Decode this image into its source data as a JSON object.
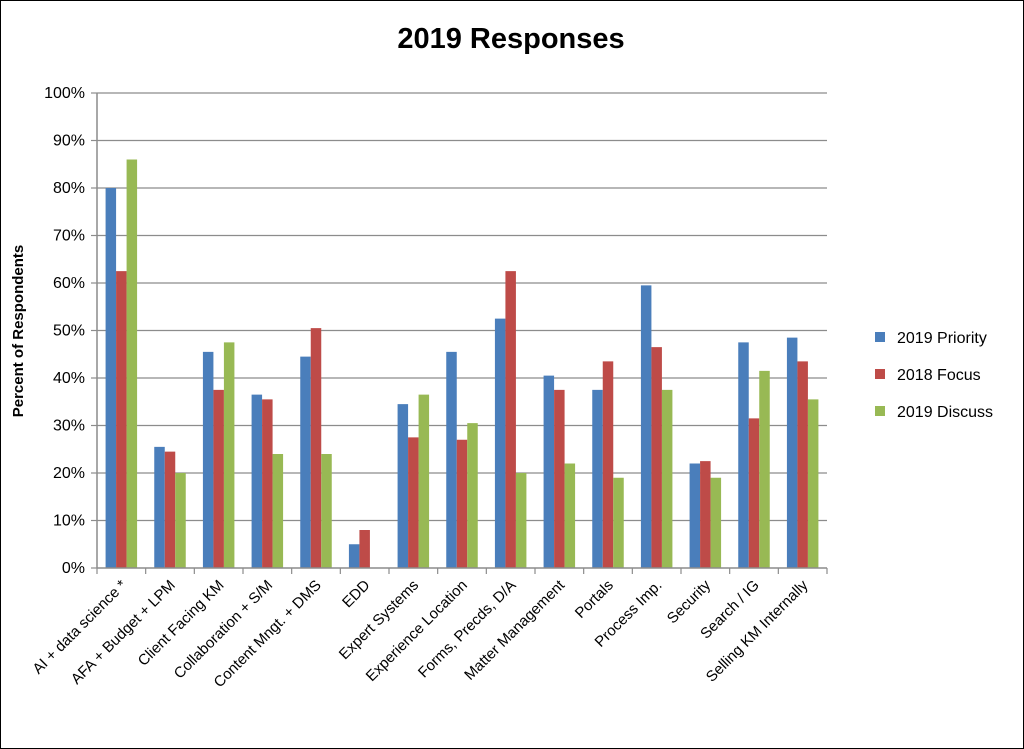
{
  "chart_data": {
    "type": "bar",
    "title": "2019 Responses",
    "xlabel": "",
    "ylabel": "Percent of Respondents",
    "ylim": [
      0,
      100
    ],
    "yticks": [
      "0%",
      "10%",
      "20%",
      "30%",
      "40%",
      "50%",
      "60%",
      "70%",
      "80%",
      "90%",
      "100%"
    ],
    "grid": true,
    "legend_position": "right",
    "categories": [
      "AI + data science *",
      "AFA + Budget + LPM",
      "Client Facing KM",
      "Collaboration + S/M",
      "Content Mngt. + DMS",
      "EDD",
      "Expert Systems",
      "Experience Location",
      "Forms, Precds, D/A",
      "Matter Management",
      "Portals",
      "Process Imp.",
      "Security",
      "Search / IG",
      "Selling KM Internally"
    ],
    "series": [
      {
        "name": "2019 Priority",
        "color": "#4a7ebb",
        "values": [
          80,
          25.5,
          45.5,
          36.5,
          44.5,
          5,
          34.5,
          45.5,
          52.5,
          40.5,
          37.5,
          59.5,
          22,
          47.5,
          48.5
        ]
      },
      {
        "name": "2018 Focus",
        "color": "#be4b48",
        "values": [
          62.5,
          24.5,
          37.5,
          35.5,
          50.5,
          8,
          27.5,
          27,
          62.5,
          37.5,
          43.5,
          46.5,
          22.5,
          31.5,
          43.5
        ]
      },
      {
        "name": "2019 Discuss",
        "color": "#98b954",
        "values": [
          86,
          20,
          47.5,
          24,
          24,
          0,
          36.5,
          30.5,
          20,
          22,
          19,
          37.5,
          19,
          41.5,
          35.5
        ]
      }
    ]
  }
}
